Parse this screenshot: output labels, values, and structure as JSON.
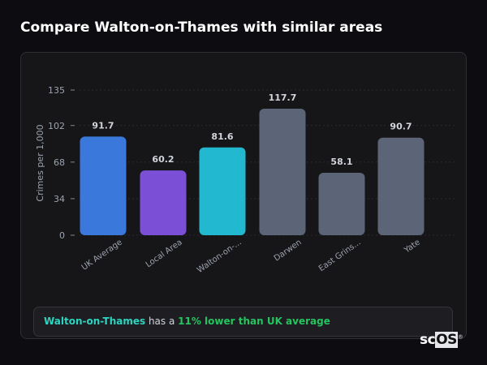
{
  "header": {
    "title": "Compare Walton-on-Thames with similar areas"
  },
  "chart_data": {
    "type": "bar",
    "categories": [
      "UK Average",
      "Local Area",
      "Walton-on-...",
      "Darwen",
      "East Grins...",
      "Yate"
    ],
    "values": [
      91.7,
      60.2,
      81.6,
      117.7,
      58.1,
      90.7
    ],
    "data_labels": [
      "91.7",
      "60.2",
      "81.6",
      "117.7",
      "58.1",
      "90.7"
    ],
    "colors": [
      "#3b78dc",
      "#7b4fd6",
      "#22b8cf",
      "#5b6577",
      "#5b6577",
      "#5b6577"
    ],
    "ylabel": "Crimes per 1,000",
    "xlabel": "",
    "yticks": [
      0,
      34,
      68,
      102,
      135
    ],
    "ylim": [
      0,
      135
    ],
    "grid": true
  },
  "summary": {
    "place": "Walton-on-Thames",
    "middle": " has a ",
    "highlight": "11% lower than UK average"
  },
  "logo": {
    "text": "scOS"
  }
}
